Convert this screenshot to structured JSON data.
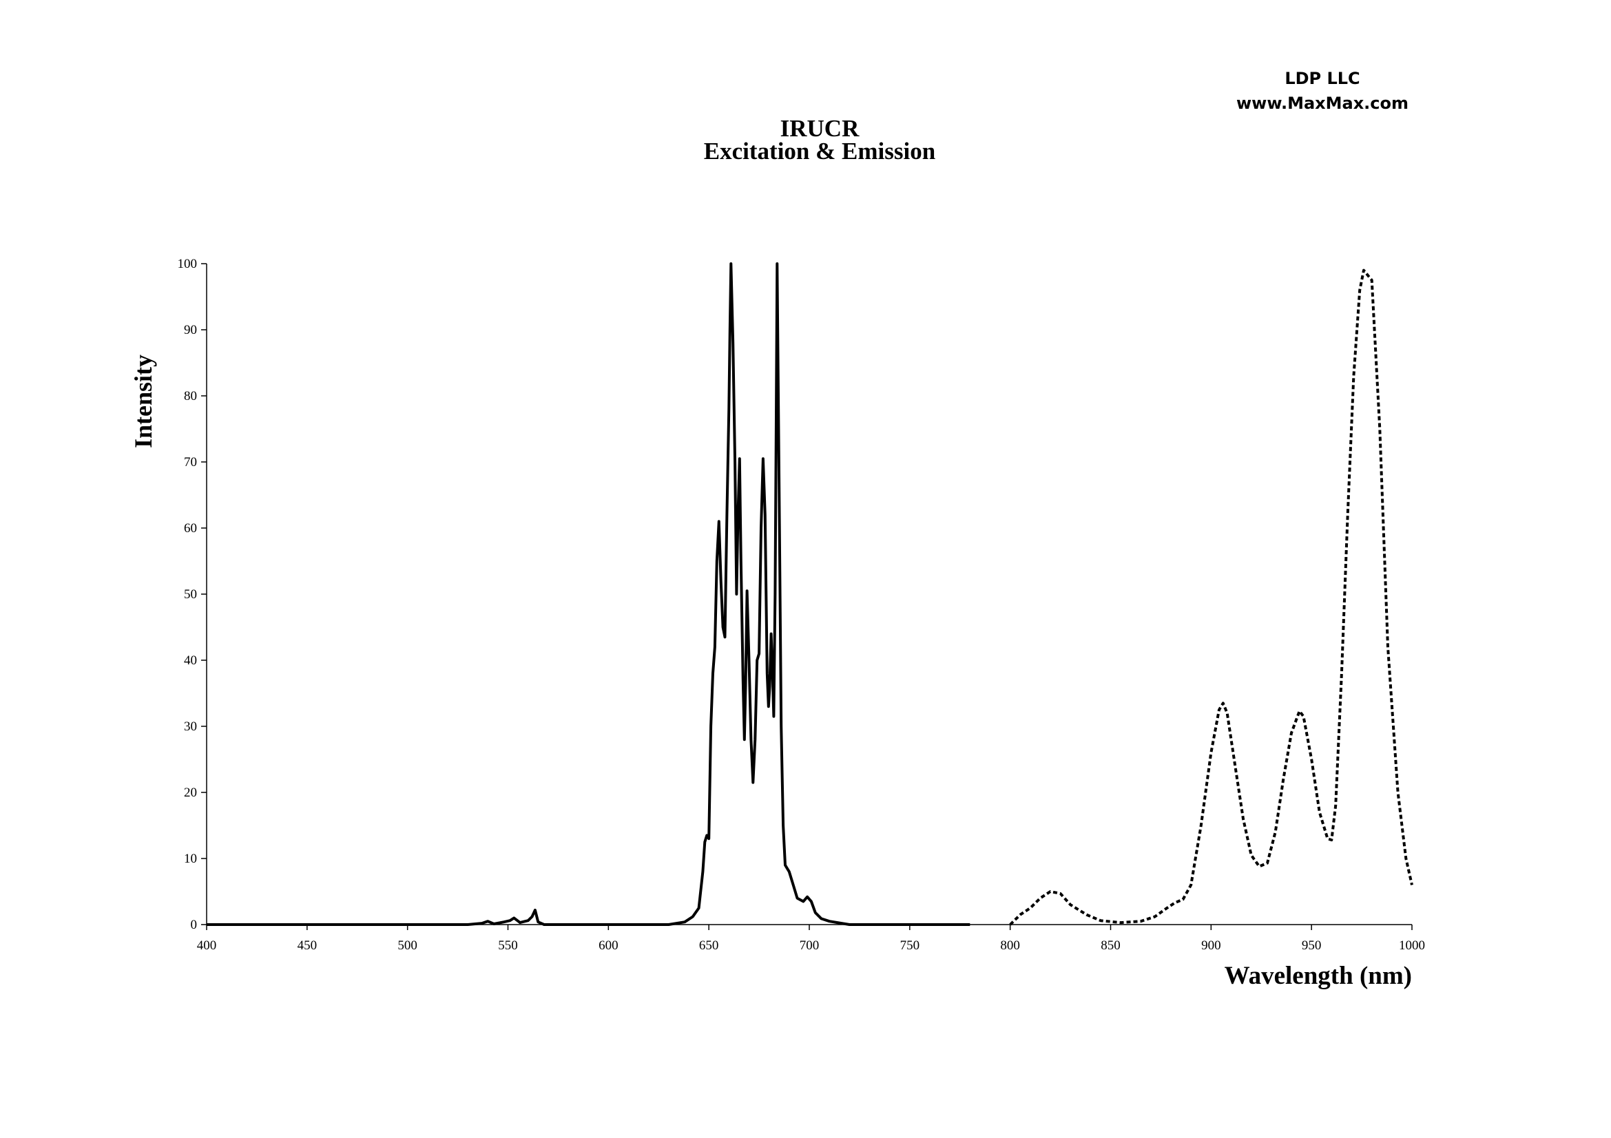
{
  "branding": {
    "company": "LDP LLC",
    "website": "www.MaxMax.com"
  },
  "chart_data": {
    "type": "line",
    "title": "IRUCR",
    "subtitle": "Excitation & Emission",
    "xlabel": "Wavelength (nm)",
    "ylabel": "Intensity",
    "xlim": [
      400,
      1000
    ],
    "ylim": [
      0,
      100
    ],
    "xticks": [
      400,
      450,
      500,
      550,
      600,
      650,
      700,
      750,
      800,
      850,
      900,
      950,
      1000
    ],
    "yticks": [
      0,
      10,
      20,
      30,
      40,
      50,
      60,
      70,
      80,
      90,
      100
    ],
    "grid": false,
    "legend": "none",
    "series": [
      {
        "style": "solid",
        "color": "#000000",
        "points": [
          [
            400,
            0
          ],
          [
            500,
            0
          ],
          [
            530,
            0
          ],
          [
            537,
            0.2
          ],
          [
            540,
            0.5
          ],
          [
            543,
            0.1
          ],
          [
            548,
            0.4
          ],
          [
            551,
            0.6
          ],
          [
            553,
            1.0
          ],
          [
            556,
            0.3
          ],
          [
            560,
            0.6
          ],
          [
            562,
            1.2
          ],
          [
            563.5,
            2.2
          ],
          [
            565,
            0.4
          ],
          [
            568,
            0
          ],
          [
            600,
            0
          ],
          [
            630,
            0
          ],
          [
            638,
            0.4
          ],
          [
            642,
            1.2
          ],
          [
            645,
            2.5
          ],
          [
            647,
            8
          ],
          [
            648,
            12.5
          ],
          [
            649,
            13.5
          ],
          [
            650,
            13
          ],
          [
            651,
            30
          ],
          [
            652,
            38
          ],
          [
            653,
            42
          ],
          [
            654,
            55
          ],
          [
            655,
            61
          ],
          [
            656,
            52
          ],
          [
            657,
            45
          ],
          [
            658,
            43.5
          ],
          [
            659,
            62
          ],
          [
            660,
            78
          ],
          [
            660.5,
            90
          ],
          [
            661,
            100
          ],
          [
            662,
            88
          ],
          [
            663,
            70
          ],
          [
            663.8,
            50
          ],
          [
            664.5,
            62
          ],
          [
            665.3,
            70.5
          ],
          [
            666,
            55
          ],
          [
            667,
            37
          ],
          [
            667.7,
            28
          ],
          [
            668.3,
            36
          ],
          [
            669,
            50.5
          ],
          [
            670,
            40
          ],
          [
            671,
            28
          ],
          [
            672,
            21.5
          ],
          [
            673,
            28
          ],
          [
            674,
            40
          ],
          [
            675,
            41
          ],
          [
            676,
            60
          ],
          [
            677,
            70.5
          ],
          [
            678,
            62
          ],
          [
            679,
            38
          ],
          [
            679.7,
            33
          ],
          [
            680.3,
            36
          ],
          [
            681,
            44
          ],
          [
            681.7,
            38
          ],
          [
            682.3,
            31.5
          ],
          [
            683,
            50
          ],
          [
            683.5,
            75
          ],
          [
            684,
            100
          ],
          [
            685,
            65
          ],
          [
            686,
            30
          ],
          [
            687,
            15
          ],
          [
            688,
            9
          ],
          [
            690,
            8
          ],
          [
            692,
            6
          ],
          [
            694,
            4
          ],
          [
            697,
            3.5
          ],
          [
            699,
            4.2
          ],
          [
            701,
            3.5
          ],
          [
            703,
            1.8
          ],
          [
            706,
            0.9
          ],
          [
            710,
            0.5
          ],
          [
            714,
            0.3
          ],
          [
            720,
            0
          ],
          [
            780,
            0
          ]
        ]
      },
      {
        "style": "dotted",
        "color": "#000000",
        "points": [
          [
            800,
            0
          ],
          [
            805,
            1.5
          ],
          [
            810,
            2.5
          ],
          [
            815,
            4
          ],
          [
            820,
            5
          ],
          [
            825,
            4.7
          ],
          [
            830,
            3
          ],
          [
            838,
            1.5
          ],
          [
            845,
            0.6
          ],
          [
            855,
            0.3
          ],
          [
            865,
            0.5
          ],
          [
            872,
            1.2
          ],
          [
            878,
            2.5
          ],
          [
            882,
            3.3
          ],
          [
            886,
            3.8
          ],
          [
            890,
            6
          ],
          [
            895,
            15
          ],
          [
            900,
            26
          ],
          [
            904,
            32.5
          ],
          [
            906,
            33.5
          ],
          [
            908,
            32
          ],
          [
            912,
            24
          ],
          [
            916,
            16
          ],
          [
            920,
            10.5
          ],
          [
            924,
            8.8
          ],
          [
            928,
            9.3
          ],
          [
            932,
            14
          ],
          [
            936,
            22
          ],
          [
            940,
            29
          ],
          [
            944,
            32.3
          ],
          [
            946,
            31.5
          ],
          [
            950,
            25
          ],
          [
            954,
            17
          ],
          [
            958,
            13
          ],
          [
            960,
            12.8
          ],
          [
            962,
            18
          ],
          [
            965,
            38
          ],
          [
            968,
            62
          ],
          [
            971,
            83
          ],
          [
            974,
            96
          ],
          [
            976,
            99
          ],
          [
            980,
            97.5
          ],
          [
            984,
            75
          ],
          [
            988,
            42
          ],
          [
            993,
            20
          ],
          [
            997,
            10
          ],
          [
            1000,
            6
          ]
        ]
      }
    ]
  }
}
